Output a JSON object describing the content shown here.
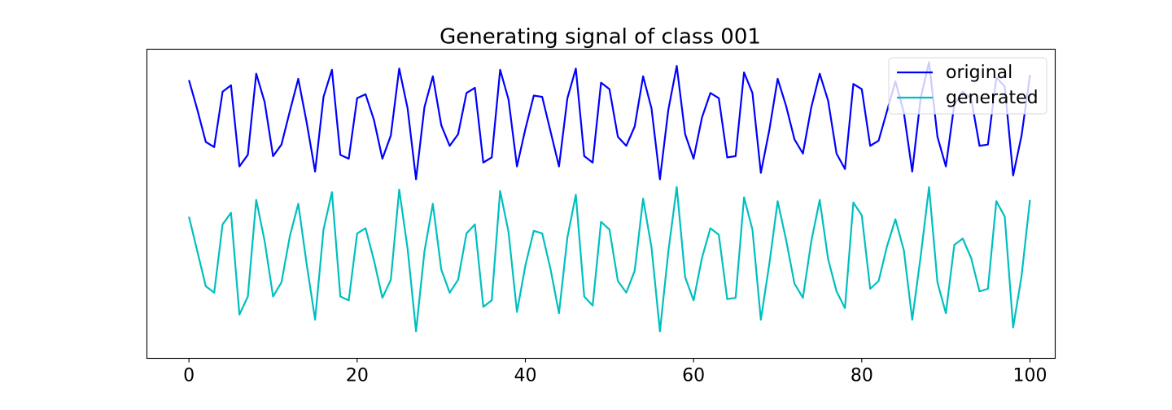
{
  "chart_data": {
    "type": "line",
    "title": "Generating signal of class 001",
    "xlabel": "",
    "ylabel": "",
    "xlim": [
      -5,
      103
    ],
    "ylim": [
      -1.2,
      1.2
    ],
    "xticks": [
      0,
      20,
      40,
      60,
      80,
      100
    ],
    "yticks": [],
    "grid": false,
    "legend_position": "top-right",
    "x": [
      0,
      1,
      2,
      3,
      4,
      5,
      6,
      7,
      8,
      9,
      10,
      11,
      12,
      13,
      14,
      15,
      16,
      17,
      18,
      19,
      20,
      21,
      22,
      23,
      24,
      25,
      26,
      27,
      28,
      29,
      30,
      31,
      32,
      33,
      34,
      35,
      36,
      37,
      38,
      39,
      40,
      41,
      42,
      43,
      44,
      45,
      46,
      47,
      48,
      49,
      50,
      51,
      52,
      53,
      54,
      55,
      56,
      57,
      58,
      59,
      60,
      61,
      62,
      63,
      64,
      65,
      66,
      67,
      68,
      69,
      70,
      71,
      72,
      73,
      74,
      75,
      75,
      76,
      77,
      78,
      79,
      80,
      81,
      82,
      83,
      84,
      85,
      86,
      87,
      88,
      89,
      90,
      91,
      92,
      93,
      94,
      95,
      96,
      97,
      98,
      99
    ],
    "series": [
      {
        "name": "original",
        "color": "#0000ff",
        "values": [
          0.96,
          0.73,
          0.48,
          0.44,
          0.87,
          0.92,
          0.29,
          0.38,
          1.01,
          0.79,
          0.37,
          0.46,
          0.72,
          0.97,
          0.63,
          0.25,
          0.83,
          1.04,
          0.38,
          0.35,
          0.82,
          0.85,
          0.65,
          0.35,
          0.53,
          1.05,
          0.74,
          0.19,
          0.75,
          0.99,
          0.61,
          0.45,
          0.54,
          0.86,
          0.9,
          0.32,
          0.36,
          1.04,
          0.81,
          0.29,
          0.58,
          0.84,
          0.83,
          0.56,
          0.29,
          0.82,
          1.05,
          0.37,
          0.32,
          0.94,
          0.89,
          0.52,
          0.45,
          0.6,
          0.99,
          0.74,
          0.19,
          0.73,
          1.07,
          0.54,
          0.35,
          0.67,
          0.86,
          0.82,
          0.36,
          0.37,
          1.02,
          0.86,
          0.24,
          0.57,
          0.97,
          0.76,
          0.5,
          0.39,
          0.75,
          1.01,
          0.8,
          0.39,
          0.27,
          0.93,
          0.89,
          0.45,
          0.49,
          0.72,
          0.95,
          0.71,
          0.25,
          0.82,
          1.1,
          0.52,
          0.29,
          0.77,
          0.87,
          0.82,
          0.45,
          0.46,
          0.98,
          0.91,
          0.22,
          0.53,
          1.0
        ]
      },
      {
        "name": "generated",
        "color": "#00bfbf",
        "values": [
          -0.1,
          -0.37,
          -0.64,
          -0.69,
          -0.16,
          -0.07,
          -0.86,
          -0.72,
          0.03,
          -0.29,
          -0.72,
          -0.61,
          -0.25,
          0.0,
          -0.47,
          -0.9,
          -0.2,
          0.09,
          -0.72,
          -0.75,
          -0.23,
          -0.19,
          -0.44,
          -0.73,
          -0.59,
          0.11,
          -0.35,
          -0.99,
          -0.37,
          0.0,
          -0.51,
          -0.69,
          -0.59,
          -0.23,
          -0.16,
          -0.8,
          -0.75,
          0.1,
          -0.22,
          -0.84,
          -0.48,
          -0.21,
          -0.23,
          -0.51,
          -0.85,
          -0.26,
          0.07,
          -0.72,
          -0.79,
          -0.14,
          -0.2,
          -0.6,
          -0.69,
          -0.52,
          0.04,
          -0.34,
          -0.99,
          -0.37,
          0.13,
          -0.57,
          -0.75,
          -0.42,
          -0.19,
          -0.24,
          -0.74,
          -0.73,
          0.05,
          -0.2,
          -0.9,
          -0.47,
          0.02,
          -0.28,
          -0.62,
          -0.73,
          -0.29,
          0.03,
          -0.43,
          -0.68,
          -0.81,
          0.01,
          -0.09,
          -0.66,
          -0.6,
          -0.33,
          -0.12,
          -0.36,
          -0.9,
          -0.41,
          0.13,
          -0.61,
          -0.85,
          -0.32,
          -0.27,
          -0.42,
          -0.68,
          -0.66,
          0.02,
          -0.1,
          -0.96,
          -0.56,
          0.03
        ]
      }
    ]
  }
}
